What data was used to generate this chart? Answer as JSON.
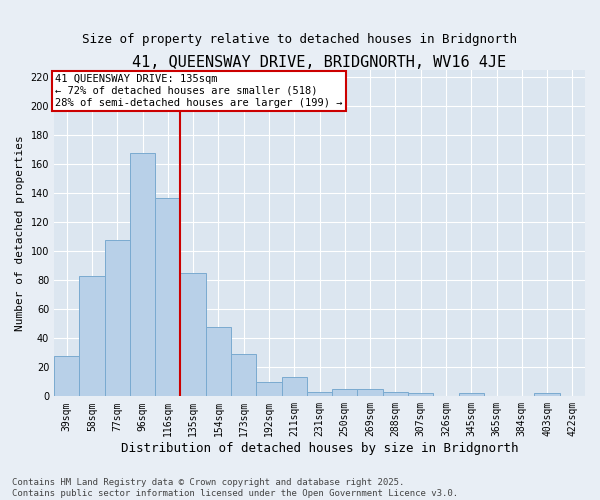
{
  "title": "41, QUEENSWAY DRIVE, BRIDGNORTH, WV16 4JE",
  "subtitle": "Size of property relative to detached houses in Bridgnorth",
  "xlabel": "Distribution of detached houses by size in Bridgnorth",
  "ylabel": "Number of detached properties",
  "categories": [
    "39sqm",
    "58sqm",
    "77sqm",
    "96sqm",
    "116sqm",
    "135sqm",
    "154sqm",
    "173sqm",
    "192sqm",
    "211sqm",
    "231sqm",
    "250sqm",
    "269sqm",
    "288sqm",
    "307sqm",
    "326sqm",
    "345sqm",
    "365sqm",
    "384sqm",
    "403sqm",
    "422sqm"
  ],
  "values": [
    28,
    83,
    108,
    168,
    137,
    85,
    48,
    29,
    10,
    13,
    3,
    5,
    5,
    3,
    2,
    0,
    2,
    0,
    0,
    2,
    0
  ],
  "bar_color": "#b8d0e8",
  "bar_edge_color": "#7aaad0",
  "bar_linewidth": 0.7,
  "vline_index": 4.5,
  "vline_color": "#cc0000",
  "annotation_title": "41 QUEENSWAY DRIVE: 135sqm",
  "annotation_line1": "← 72% of detached houses are smaller (518)",
  "annotation_line2": "28% of semi-detached houses are larger (199) →",
  "annotation_box_color": "#ffffff",
  "annotation_box_edge": "#cc0000",
  "ylim": [
    0,
    225
  ],
  "yticks": [
    0,
    20,
    40,
    60,
    80,
    100,
    120,
    140,
    160,
    180,
    200,
    220
  ],
  "background_color": "#e8eef5",
  "plot_bg_color": "#dce6f0",
  "grid_color": "#c8d8e8",
  "footer": "Contains HM Land Registry data © Crown copyright and database right 2025.\nContains public sector information licensed under the Open Government Licence v3.0.",
  "title_fontsize": 11,
  "subtitle_fontsize": 9,
  "xlabel_fontsize": 9,
  "ylabel_fontsize": 8,
  "tick_fontsize": 7,
  "annotation_fontsize": 7.5,
  "footer_fontsize": 6.5
}
